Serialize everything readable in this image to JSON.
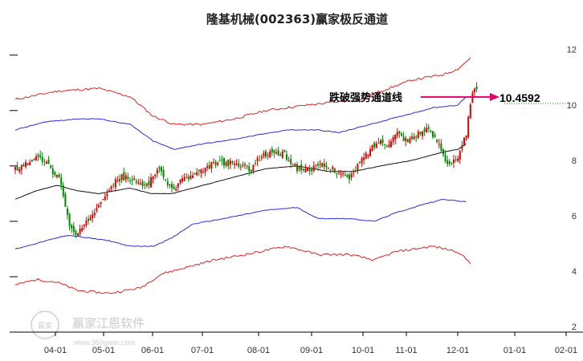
{
  "chart_data": {
    "type": "candlestick",
    "title": "隆基机械(002363)赢家极反通道",
    "y_ticks": [
      2,
      4,
      6,
      8,
      10,
      12
    ],
    "ylim": [
      2,
      12.6
    ],
    "x_ticks": [
      "04-01",
      "05-01",
      "06-01",
      "07-01",
      "08-01",
      "09-01",
      "10-01",
      "11-01",
      "12-01",
      "01-01",
      "02-01"
    ],
    "annotation": {
      "text": "跌破强势通道线",
      "value": "10.4592",
      "price": 10.4592
    },
    "colors": {
      "up": "#dd0000",
      "down": "#008800",
      "outer_channel": "#e02020",
      "inner_channel": "#2a2ae0",
      "ma": "#111111",
      "arrow": "#e0006a",
      "dotted": "#009900"
    },
    "series": {
      "close_anchors": [
        [
          0,
          7.9
        ],
        [
          5,
          8.1
        ],
        [
          9,
          8.3
        ],
        [
          14,
          8.2
        ],
        [
          18,
          7.8
        ],
        [
          21,
          7.6
        ],
        [
          24,
          6.6
        ],
        [
          26,
          5.8
        ],
        [
          29,
          5.5
        ],
        [
          33,
          5.8
        ],
        [
          37,
          6.3
        ],
        [
          42,
          6.9
        ],
        [
          46,
          7.3
        ],
        [
          51,
          7.6
        ],
        [
          56,
          7.5
        ],
        [
          60,
          7.3
        ],
        [
          64,
          7.4
        ],
        [
          68,
          7.9
        ],
        [
          72,
          7.5
        ],
        [
          76,
          7.1
        ],
        [
          79,
          7.5
        ],
        [
          84,
          7.6
        ],
        [
          90,
          7.8
        ],
        [
          95,
          8.1
        ],
        [
          102,
          8.1
        ],
        [
          108,
          8.0
        ],
        [
          113,
          7.9
        ],
        [
          117,
          8.3
        ],
        [
          123,
          8.5
        ],
        [
          129,
          8.4
        ],
        [
          135,
          7.9
        ],
        [
          141,
          7.9
        ],
        [
          147,
          8.0
        ],
        [
          152,
          7.9
        ],
        [
          157,
          7.7
        ],
        [
          160,
          7.5
        ],
        [
          164,
          8.0
        ],
        [
          169,
          8.5
        ],
        [
          174,
          8.9
        ],
        [
          178,
          8.8
        ],
        [
          183,
          9.2
        ],
        [
          188,
          8.9
        ],
        [
          193,
          9.2
        ],
        [
          198,
          9.3
        ],
        [
          203,
          8.8
        ],
        [
          207,
          8.1
        ],
        [
          212,
          8.2
        ],
        [
          216,
          9.2
        ],
        [
          219,
          10.6
        ],
        [
          221,
          10.8
        ]
      ],
      "ma_anchors": [
        [
          0,
          6.8
        ],
        [
          10,
          7.1
        ],
        [
          20,
          7.3
        ],
        [
          30,
          7.1
        ],
        [
          40,
          7.0
        ],
        [
          55,
          7.2
        ],
        [
          65,
          7.0
        ],
        [
          75,
          7.0
        ],
        [
          90,
          7.3
        ],
        [
          105,
          7.6
        ],
        [
          120,
          7.9
        ],
        [
          135,
          8.0
        ],
        [
          150,
          7.8
        ],
        [
          162,
          7.8
        ],
        [
          175,
          8.0
        ],
        [
          190,
          8.2
        ],
        [
          205,
          8.5
        ],
        [
          212,
          8.6
        ],
        [
          216,
          8.8
        ]
      ],
      "inner_upper_anchors": [
        [
          0,
          9.3
        ],
        [
          15,
          9.6
        ],
        [
          30,
          9.7
        ],
        [
          40,
          9.7
        ],
        [
          55,
          9.5
        ],
        [
          66,
          8.9
        ],
        [
          76,
          8.6
        ],
        [
          90,
          8.8
        ],
        [
          100,
          8.9
        ],
        [
          115,
          9.1
        ],
        [
          130,
          9.3
        ],
        [
          145,
          9.3
        ],
        [
          155,
          9.2
        ],
        [
          165,
          9.4
        ],
        [
          175,
          9.6
        ],
        [
          190,
          9.9
        ],
        [
          200,
          10.1
        ],
        [
          212,
          10.2
        ],
        [
          216,
          10.5
        ]
      ],
      "inner_lower_anchors": [
        [
          0,
          5.0
        ],
        [
          10,
          5.2
        ],
        [
          25,
          5.5
        ],
        [
          45,
          5.3
        ],
        [
          55,
          5.1
        ],
        [
          66,
          5.1
        ],
        [
          75,
          5.4
        ],
        [
          85,
          5.9
        ],
        [
          100,
          6.1
        ],
        [
          120,
          6.4
        ],
        [
          135,
          6.5
        ],
        [
          145,
          6.1
        ],
        [
          160,
          6.1
        ],
        [
          172,
          6.0
        ],
        [
          182,
          6.3
        ],
        [
          195,
          6.6
        ],
        [
          205,
          6.8
        ],
        [
          216,
          6.7
        ]
      ],
      "outer_upper_anchors": [
        [
          0,
          10.4
        ],
        [
          20,
          10.7
        ],
        [
          40,
          10.8
        ],
        [
          55,
          10.5
        ],
        [
          66,
          9.8
        ],
        [
          76,
          9.5
        ],
        [
          90,
          9.5
        ],
        [
          105,
          9.7
        ],
        [
          120,
          10.0
        ],
        [
          140,
          10.2
        ],
        [
          165,
          10.4
        ],
        [
          175,
          10.7
        ],
        [
          190,
          11.1
        ],
        [
          205,
          11.3
        ],
        [
          212,
          11.5
        ],
        [
          218,
          11.9
        ]
      ],
      "outer_lower_anchors": [
        [
          0,
          3.7
        ],
        [
          10,
          3.9
        ],
        [
          20,
          3.8
        ],
        [
          30,
          3.5
        ],
        [
          45,
          3.4
        ],
        [
          60,
          3.6
        ],
        [
          70,
          4.1
        ],
        [
          80,
          4.3
        ],
        [
          95,
          4.6
        ],
        [
          110,
          4.8
        ],
        [
          130,
          5.1
        ],
        [
          145,
          4.8
        ],
        [
          160,
          4.8
        ],
        [
          172,
          4.6
        ],
        [
          182,
          4.9
        ],
        [
          200,
          5.1
        ],
        [
          212,
          4.9
        ],
        [
          218,
          4.5
        ]
      ]
    }
  },
  "watermark": {
    "name": "赢家江恩软件",
    "url": "www.360gann.com",
    "seal": "赢家"
  }
}
